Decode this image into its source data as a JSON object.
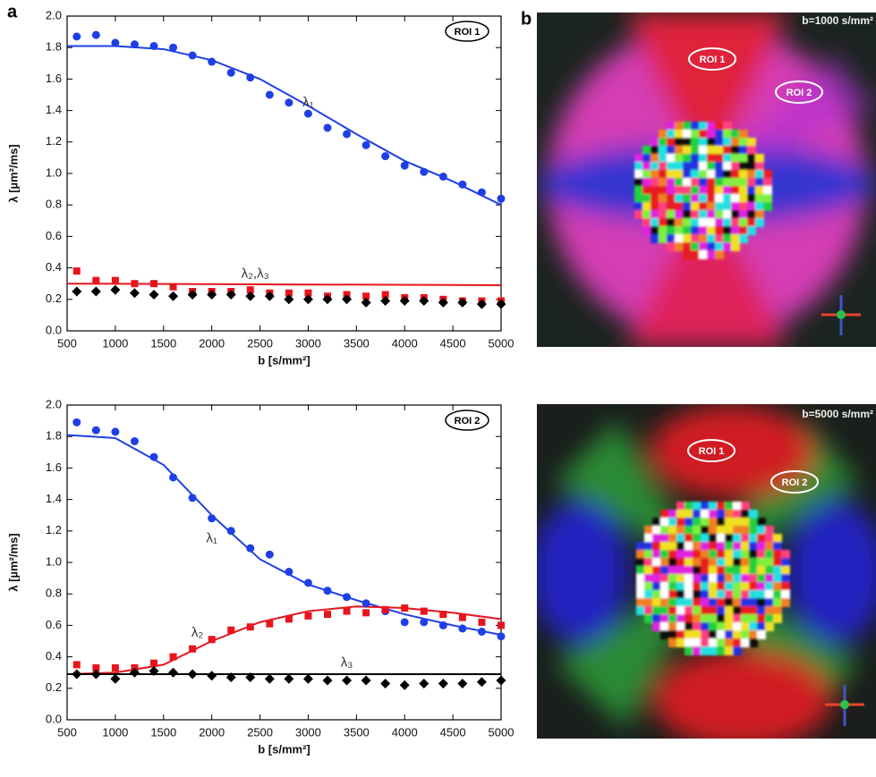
{
  "panel_labels": [
    "a",
    "b"
  ],
  "images": [
    {
      "label": "b=1000 s/mm²",
      "rois": [
        "ROI 1",
        "ROI 2"
      ]
    },
    {
      "label": "b=5000 s/mm²",
      "rois": [
        "ROI 1",
        "ROI 2"
      ]
    }
  ],
  "chart_data": [
    {
      "type": "scatter",
      "xlabel": "b [s/mm²]",
      "ylabel": "λ [µm²/ms]",
      "roi": "ROI 1",
      "annotations": [
        "λ₁",
        "λ₂,λ₃"
      ],
      "xlim": [
        500,
        5000
      ],
      "xticks": [
        500,
        1000,
        1500,
        2000,
        2500,
        3000,
        3500,
        4000,
        4500,
        5000
      ],
      "ylim": [
        0,
        2
      ],
      "yticks": [
        {
          "value": 0,
          "label": "0.0"
        },
        0.2,
        0.4,
        0.6,
        0.8,
        {
          "value": 1,
          "label": "1.0"
        },
        1.2,
        1.4,
        1.6,
        1.8,
        {
          "value": 2,
          "label": "2.0"
        }
      ],
      "x": [
        600,
        800,
        1000,
        1200,
        1400,
        1600,
        1800,
        2000,
        2200,
        2400,
        2600,
        2800,
        3000,
        3200,
        3400,
        3600,
        3800,
        4000,
        4200,
        4400,
        4600,
        4800,
        5000
      ],
      "series": [
        {
          "color": "#1f3fe6",
          "marker": "circle",
          "values": [
            1.87,
            1.88,
            1.83,
            1.82,
            1.81,
            1.8,
            1.75,
            1.71,
            1.64,
            1.61,
            1.5,
            1.45,
            1.38,
            1.29,
            1.25,
            1.18,
            1.11,
            1.05,
            1.01,
            0.98,
            0.93,
            0.88,
            0.84
          ]
        },
        {
          "color": "#e8141c",
          "marker": "square",
          "values": [
            0.38,
            0.32,
            0.32,
            0.3,
            0.3,
            0.28,
            0.25,
            0.25,
            0.25,
            0.26,
            0.24,
            0.24,
            0.24,
            0.22,
            0.23,
            0.22,
            0.23,
            0.21,
            0.21,
            0.2,
            0.19,
            0.19,
            0.19
          ]
        },
        {
          "color": "#000000",
          "marker": "diamond",
          "values": [
            0.25,
            0.25,
            0.26,
            0.24,
            0.23,
            0.22,
            0.23,
            0.23,
            0.23,
            0.22,
            0.22,
            0.2,
            0.2,
            0.2,
            0.2,
            0.18,
            0.19,
            0.19,
            0.19,
            0.18,
            0.18,
            0.17,
            0.17
          ]
        }
      ],
      "fits": [
        {
          "color": "#1f3fe6",
          "x": [
            500,
            1000,
            1500,
            2000,
            2500,
            3000,
            3500,
            4000,
            4500,
            5000
          ],
          "values": [
            1.81,
            1.81,
            1.79,
            1.72,
            1.6,
            1.43,
            1.25,
            1.08,
            0.95,
            0.8
          ]
        },
        {
          "color": "#e8141c",
          "x": [
            500,
            5000
          ],
          "values": [
            0.3,
            0.29
          ]
        }
      ]
    },
    {
      "type": "scatter",
      "xlabel": "b [s/mm²]",
      "ylabel": "λ [µm²/ms]",
      "roi": "ROI 2",
      "annotations": [
        "λ₁",
        "λ₂",
        "λ₃"
      ],
      "xlim": [
        500,
        5000
      ],
      "xticks": [
        500,
        1000,
        1500,
        2000,
        2500,
        3000,
        3500,
        4000,
        4500,
        5000
      ],
      "ylim": [
        0,
        2
      ],
      "yticks": [
        {
          "value": 0,
          "label": "0.0"
        },
        0.2,
        0.4,
        0.6,
        0.8,
        {
          "value": 1,
          "label": "1.0"
        },
        1.2,
        1.4,
        1.6,
        1.8,
        {
          "value": 2,
          "label": "2.0"
        }
      ],
      "x": [
        600,
        800,
        1000,
        1200,
        1400,
        1600,
        1800,
        2000,
        2200,
        2400,
        2600,
        2800,
        3000,
        3200,
        3400,
        3600,
        3800,
        4000,
        4200,
        4400,
        4600,
        4800,
        5000
      ],
      "series": [
        {
          "color": "#1f3fe6",
          "marker": "circle",
          "values": [
            1.89,
            1.84,
            1.83,
            1.77,
            1.67,
            1.54,
            1.41,
            1.28,
            1.2,
            1.09,
            1.05,
            0.94,
            0.87,
            0.82,
            0.78,
            0.74,
            0.69,
            0.62,
            0.62,
            0.6,
            0.58,
            0.56,
            0.53
          ]
        },
        {
          "color": "#e8141c",
          "marker": "square",
          "values": [
            0.35,
            0.33,
            0.33,
            0.33,
            0.36,
            0.4,
            0.45,
            0.51,
            0.57,
            0.59,
            0.61,
            0.64,
            0.66,
            0.67,
            0.69,
            0.68,
            0.7,
            0.71,
            0.69,
            0.67,
            0.65,
            0.62,
            0.6
          ]
        },
        {
          "color": "#000000",
          "marker": "diamond",
          "values": [
            0.29,
            0.29,
            0.26,
            0.3,
            0.31,
            0.3,
            0.29,
            0.28,
            0.27,
            0.27,
            0.26,
            0.26,
            0.26,
            0.25,
            0.25,
            0.25,
            0.23,
            0.22,
            0.23,
            0.23,
            0.23,
            0.24,
            0.25
          ]
        }
      ],
      "fits": [
        {
          "color": "#1f3fe6",
          "x": [
            500,
            1000,
            1500,
            2000,
            2500,
            3000,
            3500,
            4000,
            4500,
            5000
          ],
          "values": [
            1.81,
            1.79,
            1.62,
            1.3,
            1.02,
            0.86,
            0.76,
            0.67,
            0.6,
            0.54
          ]
        },
        {
          "color": "#e8141c",
          "x": [
            500,
            1000,
            1500,
            2000,
            2500,
            3000,
            3500,
            4000,
            4500,
            5000
          ],
          "values": [
            0.29,
            0.3,
            0.35,
            0.5,
            0.62,
            0.69,
            0.72,
            0.71,
            0.68,
            0.64
          ]
        },
        {
          "color": "#000000",
          "x": [
            500,
            5000
          ],
          "values": [
            0.29,
            0.29
          ]
        }
      ]
    }
  ]
}
